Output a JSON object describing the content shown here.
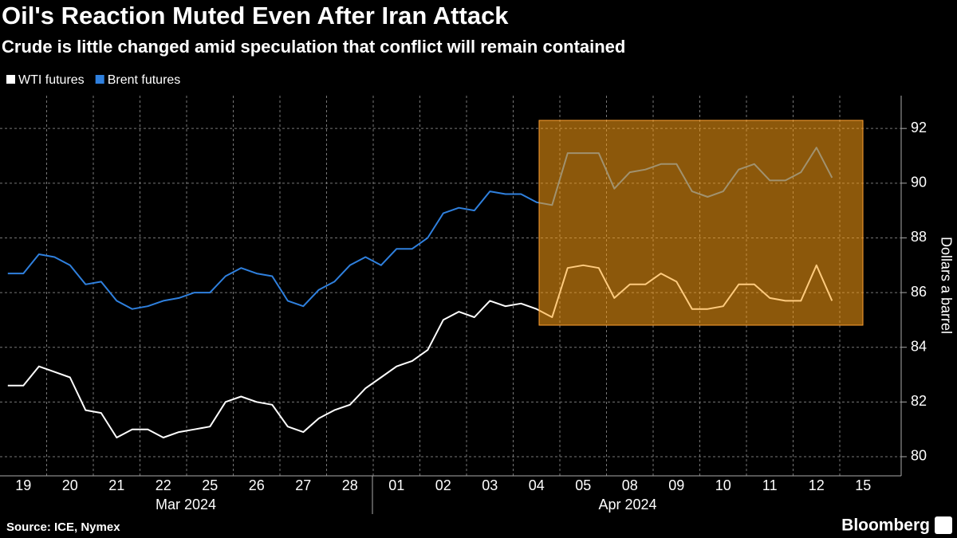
{
  "chart_data": {
    "type": "line",
    "title": "Oil's Reaction Muted Even After Iran Attack",
    "subtitle": "Crude is little changed amid speculation that conflict will remain contained",
    "y_label": "Dollars a barrel",
    "months": [
      "Mar 2024",
      "Apr 2024"
    ],
    "source": "Source: ICE, Nymex",
    "brand": "Bloomberg",
    "categories": [
      null,
      "19",
      null,
      null,
      "20",
      null,
      null,
      "21",
      null,
      null,
      "22",
      null,
      null,
      "25",
      null,
      null,
      "26",
      null,
      null,
      "27",
      null,
      null,
      "28",
      null,
      null,
      "01",
      null,
      null,
      "02",
      null,
      null,
      "03",
      null,
      null,
      "04",
      null,
      null,
      "05",
      null,
      null,
      "08",
      null,
      null,
      "09",
      null,
      null,
      "10",
      null,
      null,
      "11",
      null,
      null,
      "12",
      null,
      null,
      "15",
      null
    ],
    "series": [
      {
        "name": "WTI futures",
        "color": "#ffffff",
        "values": [
          82.6,
          82.6,
          83.3,
          83.1,
          82.9,
          81.7,
          81.6,
          80.7,
          81.0,
          81.0,
          80.7,
          80.9,
          81.0,
          81.1,
          82.0,
          82.2,
          82.0,
          81.9,
          81.1,
          80.9,
          81.4,
          81.7,
          81.9,
          82.5,
          82.9,
          83.3,
          83.5,
          83.9,
          85.0,
          85.3,
          85.1,
          85.7,
          85.5,
          85.6,
          85.4,
          85.1,
          86.9,
          87.0,
          86.9,
          85.8,
          86.3,
          86.3,
          86.7,
          86.4,
          85.4,
          85.4,
          85.5,
          86.3,
          86.3,
          85.8,
          85.7,
          85.7,
          87.0,
          85.7,
          null,
          null,
          null
        ]
      },
      {
        "name": "Brent futures",
        "color": "#2f80de",
        "values": [
          86.7,
          86.7,
          87.4,
          87.3,
          87.0,
          86.3,
          86.4,
          85.7,
          85.4,
          85.5,
          85.7,
          85.8,
          86.0,
          86.0,
          86.6,
          86.9,
          86.7,
          86.6,
          85.7,
          85.5,
          86.1,
          86.4,
          87.0,
          87.3,
          87.0,
          87.6,
          87.6,
          88.0,
          88.9,
          89.1,
          89.0,
          89.7,
          89.6,
          89.6,
          89.3,
          89.2,
          91.1,
          91.1,
          91.1,
          89.8,
          90.4,
          90.5,
          90.7,
          90.7,
          89.7,
          89.5,
          89.7,
          90.5,
          90.7,
          90.1,
          90.1,
          90.4,
          91.3,
          90.2,
          null,
          null,
          null
        ]
      }
    ],
    "ylim": [
      79.3,
      93.2
    ],
    "yticks": [
      80,
      82,
      84,
      86,
      88,
      90,
      92
    ],
    "grid": true
  }
}
